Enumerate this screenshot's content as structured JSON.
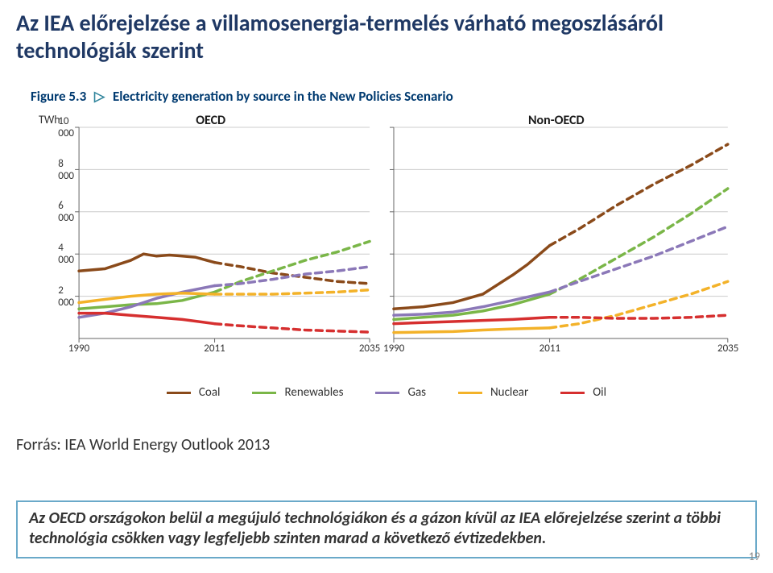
{
  "title": "Az IEA előrejelzése a villamosenergia-termelés várható megoszlásáról technológiák szerint",
  "figure": {
    "label": "Figure 5.3",
    "caption": "Electricity generation by source in the New Policies Scenario",
    "y_unit": "TWh",
    "panel_oecd": "OECD",
    "panel_nonoecd": "Non-OECD",
    "legend": {
      "coal": "Coal",
      "renewables": "Renewables",
      "gas": "Gas",
      "nuclear": "Nuclear",
      "oil": "Oil"
    }
  },
  "source": "Forrás: IEA World Energy Outlook 2013",
  "callout": "Az OECD országokon belül a megújuló technológiákon és a gázon kívül az IEA előrejelzése szerint a többi technológia csökken vagy legfeljebb szinten marad a következő évtizedekben.",
  "page_num": "19",
  "chart": {
    "type": "line",
    "background_color": "#ffffff",
    "grid_color": "#cccccc",
    "axis_color": "#666666",
    "forecast_start_year": 2011,
    "dash_pattern": "8 6",
    "line_width": 3.5,
    "label_fontsize": 13,
    "xlim": [
      1990,
      2035
    ],
    "ylim": [
      0,
      10000
    ],
    "yticks": [
      2000,
      4000,
      6000,
      8000,
      10000
    ],
    "xticks": [
      1990,
      2011,
      2035
    ],
    "series_colors": {
      "coal": "#8a4a1a",
      "renewables": "#7ab648",
      "gas": "#8b78b8",
      "nuclear": "#f3b229",
      "oil": "#d62f2f"
    },
    "oecd": {
      "coal": [
        [
          1990,
          3200
        ],
        [
          1994,
          3300
        ],
        [
          1998,
          3700
        ],
        [
          2000,
          4000
        ],
        [
          2002,
          3900
        ],
        [
          2004,
          3950
        ],
        [
          2006,
          3900
        ],
        [
          2008,
          3850
        ],
        [
          2011,
          3600
        ],
        [
          2015,
          3400
        ],
        [
          2020,
          3100
        ],
        [
          2025,
          2900
        ],
        [
          2030,
          2700
        ],
        [
          2035,
          2600
        ]
      ],
      "renewables": [
        [
          1990,
          1400
        ],
        [
          1994,
          1500
        ],
        [
          1998,
          1600
        ],
        [
          2002,
          1650
        ],
        [
          2006,
          1800
        ],
        [
          2011,
          2200
        ],
        [
          2015,
          2700
        ],
        [
          2020,
          3200
        ],
        [
          2025,
          3700
        ],
        [
          2030,
          4100
        ],
        [
          2035,
          4600
        ]
      ],
      "gas": [
        [
          1990,
          1000
        ],
        [
          1994,
          1200
        ],
        [
          1998,
          1500
        ],
        [
          2002,
          1900
        ],
        [
          2006,
          2200
        ],
        [
          2011,
          2500
        ],
        [
          2015,
          2600
        ],
        [
          2020,
          2800
        ],
        [
          2025,
          3050
        ],
        [
          2030,
          3200
        ],
        [
          2035,
          3400
        ]
      ],
      "nuclear": [
        [
          1990,
          1700
        ],
        [
          1994,
          1850
        ],
        [
          1998,
          2000
        ],
        [
          2002,
          2100
        ],
        [
          2006,
          2150
        ],
        [
          2011,
          2100
        ],
        [
          2015,
          2100
        ],
        [
          2020,
          2100
        ],
        [
          2025,
          2150
        ],
        [
          2030,
          2200
        ],
        [
          2035,
          2300
        ]
      ],
      "oil": [
        [
          1990,
          1200
        ],
        [
          1994,
          1200
        ],
        [
          1998,
          1100
        ],
        [
          2002,
          1000
        ],
        [
          2006,
          900
        ],
        [
          2011,
          700
        ],
        [
          2015,
          600
        ],
        [
          2020,
          500
        ],
        [
          2025,
          400
        ],
        [
          2030,
          350
        ],
        [
          2035,
          300
        ]
      ]
    },
    "nonoecd": {
      "coal": [
        [
          1990,
          1400
        ],
        [
          1994,
          1500
        ],
        [
          1998,
          1700
        ],
        [
          2002,
          2100
        ],
        [
          2006,
          3000
        ],
        [
          2008,
          3500
        ],
        [
          2011,
          4400
        ],
        [
          2015,
          5200
        ],
        [
          2020,
          6300
        ],
        [
          2025,
          7300
        ],
        [
          2030,
          8200
        ],
        [
          2035,
          9200
        ]
      ],
      "renewables": [
        [
          1990,
          900
        ],
        [
          1994,
          1000
        ],
        [
          1998,
          1100
        ],
        [
          2002,
          1300
        ],
        [
          2006,
          1600
        ],
        [
          2011,
          2100
        ],
        [
          2015,
          2800
        ],
        [
          2020,
          3800
        ],
        [
          2025,
          4800
        ],
        [
          2030,
          5900
        ],
        [
          2035,
          7100
        ]
      ],
      "gas": [
        [
          1990,
          1100
        ],
        [
          1994,
          1150
        ],
        [
          1998,
          1250
        ],
        [
          2002,
          1500
        ],
        [
          2006,
          1800
        ],
        [
          2011,
          2200
        ],
        [
          2015,
          2700
        ],
        [
          2020,
          3300
        ],
        [
          2025,
          3900
        ],
        [
          2030,
          4600
        ],
        [
          2035,
          5300
        ]
      ],
      "nuclear": [
        [
          1990,
          280
        ],
        [
          1994,
          300
        ],
        [
          1998,
          330
        ],
        [
          2002,
          400
        ],
        [
          2006,
          450
        ],
        [
          2011,
          500
        ],
        [
          2015,
          700
        ],
        [
          2020,
          1100
        ],
        [
          2025,
          1600
        ],
        [
          2030,
          2100
        ],
        [
          2035,
          2700
        ]
      ],
      "oil": [
        [
          1990,
          700
        ],
        [
          1994,
          750
        ],
        [
          1998,
          800
        ],
        [
          2002,
          850
        ],
        [
          2006,
          900
        ],
        [
          2011,
          1000
        ],
        [
          2015,
          1000
        ],
        [
          2020,
          950
        ],
        [
          2025,
          950
        ],
        [
          2030,
          1000
        ],
        [
          2035,
          1100
        ]
      ]
    }
  }
}
